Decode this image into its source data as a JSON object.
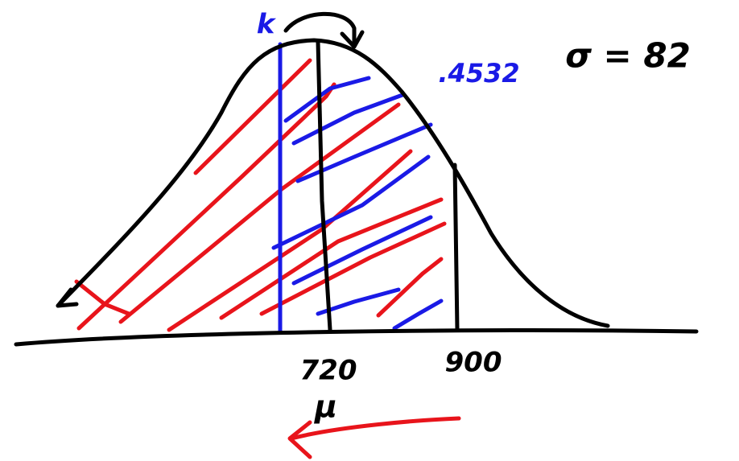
{
  "labels": {
    "k": "k",
    "probability": ".4532",
    "sigma": "σ = 82",
    "mean_value": "720",
    "x_value": "900",
    "mean_symbol": "μ"
  }
}
